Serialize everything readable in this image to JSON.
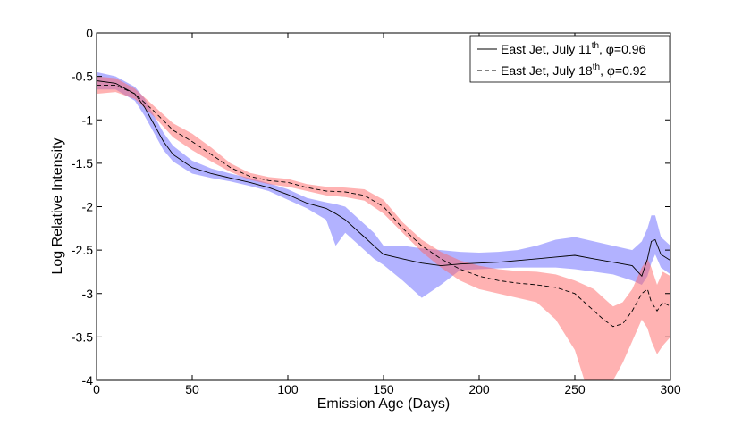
{
  "chart_data": {
    "type": "line",
    "xlabel": "Emission Age (Days)",
    "ylabel": "Log Relative Intensity",
    "xlim": [
      0,
      300
    ],
    "ylim": [
      -4,
      0
    ],
    "xticks": [
      0,
      50,
      100,
      150,
      200,
      250,
      300
    ],
    "yticks": [
      0,
      -0.5,
      -1,
      -1.5,
      -2,
      -2.5,
      -3,
      -3.5,
      -4
    ],
    "xtick_labels": [
      "0",
      "50",
      "100",
      "150",
      "200",
      "250",
      "300"
    ],
    "ytick_labels": [
      "0",
      "-0.5",
      "-1",
      "-1.5",
      "-2",
      "-2.5",
      "-3",
      "-3.5",
      "-4"
    ],
    "grid": false,
    "legend_position": "top-right",
    "series": [
      {
        "name_main": "East Jet, July 11",
        "name_sup": "th",
        "name_tail": ", φ=0.96",
        "line_style": "solid",
        "line_color": "#000000",
        "band_color": "#6666ff",
        "x": [
          0,
          10,
          20,
          25,
          30,
          35,
          40,
          50,
          60,
          70,
          80,
          90,
          100,
          110,
          120,
          125,
          130,
          135,
          140,
          145,
          150,
          160,
          170,
          180,
          190,
          200,
          210,
          220,
          230,
          240,
          250,
          260,
          270,
          280,
          285,
          288,
          290,
          292,
          295,
          300
        ],
        "y": [
          -0.55,
          -0.58,
          -0.7,
          -0.85,
          -1.05,
          -1.25,
          -1.4,
          -1.55,
          -1.62,
          -1.67,
          -1.72,
          -1.78,
          -1.86,
          -1.96,
          -2.02,
          -2.08,
          -2.15,
          -2.25,
          -2.35,
          -2.45,
          -2.55,
          -2.6,
          -2.65,
          -2.68,
          -2.66,
          -2.65,
          -2.64,
          -2.62,
          -2.6,
          -2.58,
          -2.56,
          -2.6,
          -2.64,
          -2.68,
          -2.8,
          -2.6,
          -2.4,
          -2.38,
          -2.55,
          -2.62
        ],
        "band_low": [
          -0.65,
          -0.65,
          -0.78,
          -0.95,
          -1.15,
          -1.35,
          -1.48,
          -1.62,
          -1.67,
          -1.71,
          -1.76,
          -1.82,
          -1.92,
          -2.02,
          -2.15,
          -2.45,
          -2.3,
          -2.4,
          -2.5,
          -2.6,
          -2.67,
          -2.85,
          -3.05,
          -2.9,
          -2.73,
          -2.72,
          -2.71,
          -2.7,
          -2.7,
          -2.7,
          -2.72,
          -2.75,
          -2.78,
          -2.85,
          -2.9,
          -2.8,
          -2.65,
          -2.55,
          -2.7,
          -2.78
        ],
        "band_high": [
          -0.45,
          -0.5,
          -0.62,
          -0.75,
          -0.95,
          -1.15,
          -1.3,
          -1.47,
          -1.56,
          -1.62,
          -1.67,
          -1.73,
          -1.8,
          -1.9,
          -1.95,
          -1.97,
          -2.0,
          -2.1,
          -2.2,
          -2.3,
          -2.45,
          -2.45,
          -2.48,
          -2.5,
          -2.52,
          -2.53,
          -2.52,
          -2.5,
          -2.45,
          -2.38,
          -2.35,
          -2.4,
          -2.45,
          -2.5,
          -2.4,
          -2.25,
          -2.1,
          -2.1,
          -2.35,
          -2.45
        ]
      },
      {
        "name_main": "East Jet, July 18",
        "name_sup": "th",
        "name_tail": ", φ=0.92",
        "line_style": "dashed",
        "line_color": "#000000",
        "band_color": "#ff6666",
        "x": [
          0,
          10,
          20,
          30,
          40,
          50,
          60,
          70,
          80,
          90,
          100,
          110,
          120,
          130,
          140,
          150,
          160,
          170,
          180,
          190,
          200,
          210,
          220,
          230,
          240,
          250,
          255,
          260,
          265,
          270,
          275,
          280,
          285,
          288,
          290,
          293,
          296,
          300
        ],
        "y": [
          -0.6,
          -0.6,
          -0.7,
          -0.9,
          -1.12,
          -1.25,
          -1.4,
          -1.55,
          -1.65,
          -1.7,
          -1.72,
          -1.78,
          -1.82,
          -1.83,
          -1.87,
          -2.0,
          -2.25,
          -2.45,
          -2.6,
          -2.72,
          -2.8,
          -2.85,
          -2.88,
          -2.9,
          -2.93,
          -3.0,
          -3.1,
          -3.2,
          -3.3,
          -3.38,
          -3.35,
          -3.2,
          -3.0,
          -2.95,
          -3.1,
          -3.2,
          -3.1,
          -3.15
        ],
        "band_low": [
          -0.7,
          -0.68,
          -0.76,
          -0.96,
          -1.2,
          -1.35,
          -1.48,
          -1.6,
          -1.69,
          -1.74,
          -1.77,
          -1.82,
          -1.87,
          -1.89,
          -1.93,
          -2.08,
          -2.3,
          -2.52,
          -2.7,
          -2.85,
          -2.95,
          -3.0,
          -3.05,
          -3.1,
          -3.3,
          -3.65,
          -4.0,
          -4.0,
          -4.0,
          -4.0,
          -3.8,
          -3.55,
          -3.3,
          -3.4,
          -3.55,
          -3.7,
          -3.6,
          -3.5
        ],
        "band_high": [
          -0.5,
          -0.52,
          -0.64,
          -0.84,
          -1.04,
          -1.16,
          -1.32,
          -1.5,
          -1.61,
          -1.66,
          -1.68,
          -1.74,
          -1.77,
          -1.78,
          -1.8,
          -1.92,
          -2.18,
          -2.38,
          -2.52,
          -2.62,
          -2.68,
          -2.72,
          -2.74,
          -2.75,
          -2.78,
          -2.85,
          -2.9,
          -2.95,
          -3.05,
          -3.15,
          -3.1,
          -2.95,
          -2.7,
          -2.6,
          -2.7,
          -2.9,
          -2.75,
          -2.8
        ]
      }
    ]
  }
}
